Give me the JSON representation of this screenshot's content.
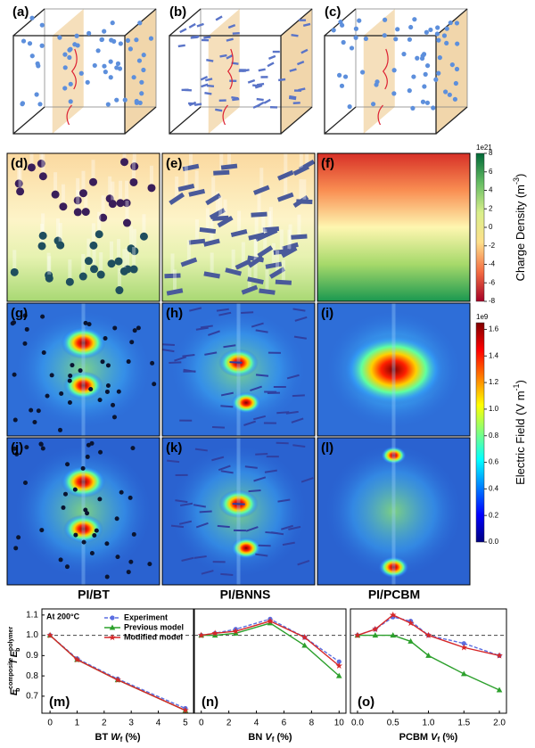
{
  "figure": {
    "panel_labels": [
      "(a)",
      "(b)",
      "(c)",
      "(d)",
      "(e)",
      "(f)",
      "(g)",
      "(h)",
      "(i)",
      "(j)",
      "(k)",
      "(l)"
    ],
    "column_titles": [
      "PI/BT",
      "PI/BNNS",
      "PI/PCBM"
    ],
    "colorbars": [
      {
        "label": {
          "prefix": "Charge Density (m",
          "superscript": "-3",
          "suffix": ")"
        },
        "exponent": "1e21",
        "lim": [
          -8,
          8
        ],
        "ticks": [
          8,
          6,
          4,
          2,
          0,
          -2,
          -4,
          -6,
          -8
        ],
        "colors": [
          "#a50026",
          "#f46d43",
          "#fee08b",
          "#d9ef8b",
          "#66bd63",
          "#006837"
        ]
      },
      {
        "label": {
          "prefix": "Electric Field (V m",
          "superscript": "-1",
          "suffix": ")"
        },
        "exponent": "1e9",
        "lim": [
          0,
          1.65
        ],
        "ticks": [
          {
            "value": 0,
            "label": "0.0"
          },
          0.2,
          0.4,
          0.6,
          0.8,
          {
            "value": 1,
            "label": "1.0"
          },
          1.2,
          1.4,
          1.6
        ],
        "colors": [
          "#00007f",
          "#0000ff",
          "#007fff",
          "#00ffff",
          "#7fff7f",
          "#ffff00",
          "#ff7f00",
          "#ff0000",
          "#7f0000"
        ]
      }
    ]
  },
  "chart_data": [
    {
      "type": "line",
      "panel_label": "(m)",
      "annotation": "At 200°C",
      "y_label": {
        "symbol": "E",
        "subscript": "b",
        "superscript": "composite",
        "separator": "/ ",
        "symbol2": "E",
        "subscript2": "b",
        "superscript2": "polymer"
      },
      "x_label": {
        "prefix": "BT ",
        "symbol": "W",
        "subscript": "f",
        "suffix": " (%)"
      },
      "x": [
        0,
        1,
        2.5,
        5
      ],
      "xlim": [
        -0.3,
        5.3
      ],
      "xticks": [
        0,
        1,
        2,
        3,
        4,
        5
      ],
      "ylim": [
        0.616,
        1.13
      ],
      "yticks": [
        0.7,
        0.8,
        0.9,
        {
          "value": 1,
          "label": "1.0"
        },
        1.1
      ],
      "reference_line": 1,
      "legend": "upper right",
      "series": [
        {
          "name": "Experiment",
          "color": "#5b6ee1",
          "marker": "circle",
          "dashed": true,
          "values": [
            1.0,
            0.885,
            0.785,
            0.64
          ]
        },
        {
          "name": "Previous model",
          "color": "#2ca02c",
          "marker": "triangle",
          "dashed": false,
          "values": [
            1.0,
            0.88,
            0.78,
            0.63
          ]
        },
        {
          "name": "Modified model",
          "color": "#d62728",
          "marker": "star",
          "dashed": false,
          "values": [
            1.0,
            0.88,
            0.78,
            0.63
          ]
        }
      ]
    },
    {
      "type": "line",
      "panel_label": "(n)",
      "x_label": {
        "prefix": "BN ",
        "symbol": "V",
        "subscript": "f",
        "suffix": " (%)"
      },
      "x": [
        0,
        1,
        2.5,
        5,
        7.5,
        10
      ],
      "xlim": [
        -0.5,
        10.5
      ],
      "xticks": [
        0,
        2,
        4,
        6,
        8,
        10
      ],
      "ylim": [
        0.616,
        1.13
      ],
      "reference_line": 1,
      "series": [
        {
          "color": "#5b6ee1",
          "marker": "circle",
          "dashed": true,
          "values": [
            1.0,
            1.01,
            1.03,
            1.08,
            0.99,
            0.87
          ]
        },
        {
          "color": "#2ca02c",
          "marker": "triangle",
          "dashed": false,
          "values": [
            1.0,
            1.0,
            1.01,
            1.06,
            0.95,
            0.8
          ]
        },
        {
          "color": "#d62728",
          "marker": "star",
          "dashed": false,
          "values": [
            1.0,
            1.01,
            1.02,
            1.07,
            0.99,
            0.85
          ]
        }
      ]
    },
    {
      "type": "line",
      "panel_label": "(o)",
      "x_label": {
        "prefix": "PCBM ",
        "symbol": "V",
        "subscript": "f",
        "suffix": " (%)"
      },
      "x": [
        0,
        0.25,
        0.5,
        0.75,
        1.0,
        1.5,
        2.0
      ],
      "xlim": [
        -0.1,
        2.1
      ],
      "xticks": [
        {
          "value": 0,
          "label": "0.0"
        },
        0.5,
        {
          "value": 1,
          "label": "1.0"
        },
        1.5,
        {
          "value": 2,
          "label": "2.0"
        }
      ],
      "ylim": [
        0.616,
        1.13
      ],
      "reference_line": 1,
      "series": [
        {
          "color": "#5b6ee1",
          "marker": "circle",
          "dashed": true,
          "values": [
            1.0,
            1.03,
            1.09,
            1.07,
            1.0,
            0.96,
            0.9
          ]
        },
        {
          "color": "#2ca02c",
          "marker": "triangle",
          "dashed": false,
          "values": [
            1.0,
            1.0,
            1.0,
            0.97,
            0.9,
            0.81,
            0.73
          ]
        },
        {
          "color": "#d62728",
          "marker": "star",
          "dashed": false,
          "values": [
            1.0,
            1.03,
            1.1,
            1.06,
            1.0,
            0.94,
            0.9
          ]
        }
      ]
    }
  ]
}
